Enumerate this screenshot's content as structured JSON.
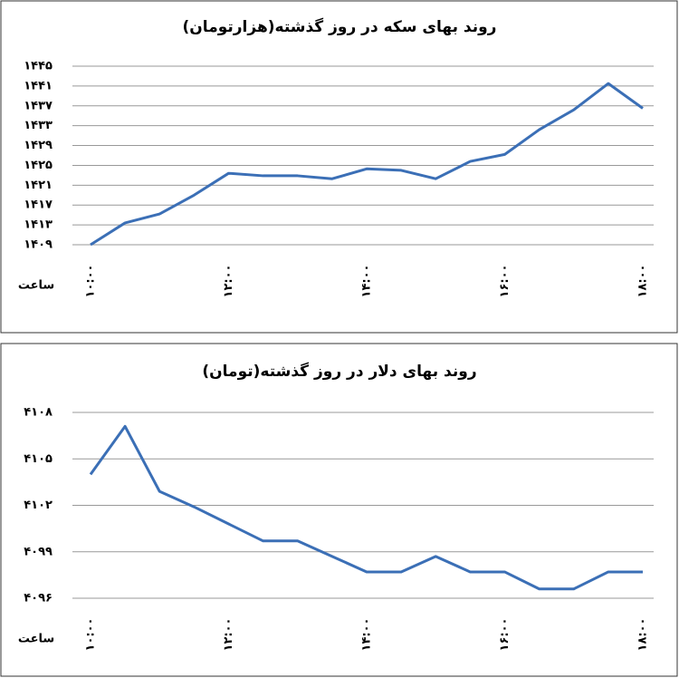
{
  "chart_data": [
    {
      "type": "line",
      "title": "روند بهای سکه در روز گذشته(هزارتومان)",
      "x_label": "ساعت",
      "categories": [
        "۱۰:۰۰",
        null,
        null,
        null,
        "۱۲:۰۰",
        null,
        null,
        null,
        "۱۴:۰۰",
        null,
        null,
        null,
        "۱۶:۰۰",
        null,
        null,
        null,
        "۱۸:۰۰"
      ],
      "series": [
        {
          "name": "سکه",
          "color": "#3b6fb6",
          "values": [
            1409,
            1413.4,
            1415.2,
            1419,
            1423.4,
            1422.9,
            1422.9,
            1422.3,
            1424.3,
            1424,
            1422.3,
            1425.8,
            1427.2,
            1432.2,
            1436.2,
            1441.5,
            1436.5
          ]
        }
      ],
      "ylim": [
        1409,
        1445
      ],
      "yticks": [
        {
          "value": 1409,
          "label": "۱۴۰۹"
        },
        {
          "value": 1413,
          "label": "۱۴۱۳"
        },
        {
          "value": 1417,
          "label": "۱۴۱۷"
        },
        {
          "value": 1421,
          "label": "۱۴۲۱"
        },
        {
          "value": 1425,
          "label": "۱۴۲۵"
        },
        {
          "value": 1429,
          "label": "۱۴۲۹"
        },
        {
          "value": 1433,
          "label": "۱۴۳۳"
        },
        {
          "value": 1437,
          "label": "۱۴۳۷"
        },
        {
          "value": 1441,
          "label": "۱۴۴۱"
        },
        {
          "value": 1445,
          "label": "۱۴۴۵"
        }
      ],
      "grid": true
    },
    {
      "type": "line",
      "title": "روند بهای دلار در روز گذشته(تومان)",
      "x_label": "ساعت",
      "categories": [
        "۱۰:۰۰",
        null,
        null,
        null,
        "۱۲:۰۰",
        null,
        null,
        null,
        "۱۴:۰۰",
        null,
        null,
        null,
        "۱۶:۰۰",
        null,
        null,
        null,
        "۱۸:۰۰"
      ],
      "series": [
        {
          "name": "دلار",
          "color": "#3b6fb6",
          "values": [
            4104,
            4107.1,
            4102.9,
            4101.9,
            4100.8,
            4099.7,
            4099.7,
            4098.7,
            4097.7,
            4097.7,
            4098.7,
            4097.7,
            4097.7,
            4096.6,
            4096.6,
            4097.7,
            4097.7
          ]
        }
      ],
      "ylim": [
        4096,
        4108
      ],
      "yticks": [
        {
          "value": 4096,
          "label": "۴۰۹۶"
        },
        {
          "value": 4099,
          "label": "۴۰۹۹"
        },
        {
          "value": 4102,
          "label": "۴۱۰۲"
        },
        {
          "value": 4105,
          "label": "۴۱۰۵"
        },
        {
          "value": 4108,
          "label": "۴۱۰۸"
        }
      ],
      "grid": true
    }
  ]
}
